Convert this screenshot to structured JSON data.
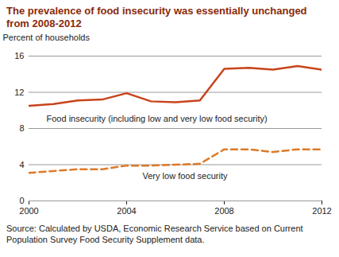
{
  "chart_data": {
    "type": "line",
    "title": "The prevalence of food insecurity was essentially unchanged from 2008-2012",
    "y_label": "Percent of households",
    "caption": "Source: Calculated by USDA, Economic Research Service based on Current Population Survey Food Security Supplement data.",
    "x": [
      2000,
      2001,
      2002,
      2003,
      2004,
      2005,
      2006,
      2007,
      2008,
      2009,
      2010,
      2011,
      2012
    ],
    "series": [
      {
        "name": "Food insecurity (including low and very low food security)",
        "color": "#c8441c",
        "line_style": "solid",
        "values": [
          10.5,
          10.7,
          11.1,
          11.2,
          11.9,
          11.0,
          10.9,
          11.1,
          14.6,
          14.7,
          14.5,
          14.9,
          14.5
        ]
      },
      {
        "name": "Very low food security",
        "color": "#dd7a27",
        "line_style": "dashed",
        "values": [
          3.1,
          3.3,
          3.5,
          3.5,
          3.9,
          3.9,
          4.0,
          4.1,
          5.7,
          5.7,
          5.4,
          5.7,
          5.7
        ]
      }
    ],
    "xlim": [
      2000,
      2012
    ],
    "xticks": [
      2000,
      2004,
      2008,
      2012
    ],
    "ylim": [
      0,
      16
    ],
    "yticks": [
      0,
      4,
      8,
      12,
      16
    ],
    "grid": true
  }
}
